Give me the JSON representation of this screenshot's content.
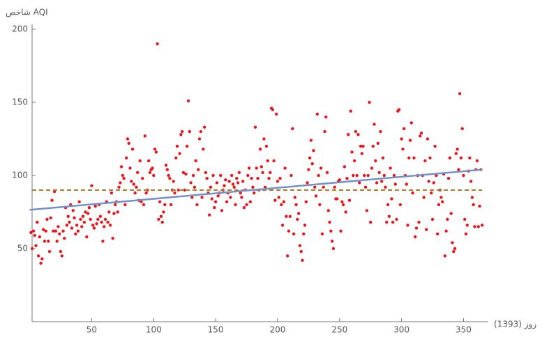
{
  "chart_data": {
    "type": "scatter",
    "y_label": "شاخص AQI",
    "x_label": "روز (1393)",
    "xlim": [
      0,
      370
    ],
    "ylim": [
      0,
      200
    ],
    "xticks": [
      50,
      100,
      150,
      200,
      250,
      300,
      350
    ],
    "yticks": [
      50,
      100,
      150,
      200
    ],
    "point_color": "#e8161b",
    "x": [
      1,
      2,
      3,
      4,
      5,
      6,
      7,
      8,
      9,
      10,
      11,
      12,
      13,
      14,
      15,
      16,
      17,
      18,
      19,
      20,
      21,
      22,
      23,
      24,
      25,
      26,
      27,
      28,
      29,
      30,
      31,
      32,
      33,
      34,
      35,
      36,
      37,
      38,
      39,
      40,
      41,
      42,
      43,
      44,
      45,
      46,
      47,
      48,
      49,
      50,
      51,
      52,
      53,
      54,
      55,
      56,
      57,
      58,
      59,
      60,
      61,
      62,
      63,
      64,
      65,
      66,
      67,
      68,
      69,
      70,
      71,
      72,
      73,
      74,
      75,
      76,
      77,
      78,
      79,
      80,
      81,
      82,
      83,
      84,
      85,
      86,
      87,
      88,
      89,
      90,
      91,
      92,
      93,
      94,
      95,
      96,
      97,
      98,
      99,
      100,
      101,
      102,
      103,
      104,
      105,
      106,
      107,
      108,
      109,
      110,
      111,
      112,
      113,
      114,
      115,
      116,
      117,
      118,
      119,
      120,
      121,
      122,
      123,
      124,
      125,
      126,
      127,
      128,
      129,
      130,
      131,
      132,
      133,
      134,
      135,
      136,
      137,
      138,
      139,
      140,
      141,
      142,
      143,
      144,
      145,
      146,
      147,
      148,
      149,
      150,
      151,
      152,
      153,
      154,
      155,
      156,
      157,
      158,
      159,
      160,
      161,
      162,
      163,
      164,
      165,
      166,
      167,
      168,
      169,
      170,
      171,
      172,
      173,
      174,
      175,
      176,
      177,
      178,
      179,
      180,
      181,
      182,
      183,
      184,
      185,
      186,
      187,
      188,
      189,
      190,
      191,
      192,
      193,
      194,
      195,
      196,
      197,
      198,
      199,
      200,
      201,
      202,
      203,
      204,
      205,
      206,
      207,
      208,
      209,
      210,
      211,
      212,
      213,
      214,
      215,
      216,
      217,
      218,
      219,
      220,
      221,
      222,
      223,
      224,
      225,
      226,
      227,
      228,
      229,
      230,
      231,
      232,
      233,
      234,
      235,
      236,
      237,
      238,
      239,
      240,
      241,
      242,
      243,
      244,
      245,
      246,
      247,
      248,
      249,
      250,
      251,
      252,
      253,
      254,
      255,
      256,
      257,
      258,
      259,
      260,
      261,
      262,
      263,
      264,
      265,
      266,
      267,
      268,
      269,
      270,
      271,
      272,
      273,
      274,
      275,
      276,
      277,
      278,
      279,
      280,
      281,
      282,
      283,
      284,
      285,
      286,
      287,
      288,
      289,
      290,
      291,
      292,
      293,
      294,
      295,
      296,
      297,
      298,
      299,
      300,
      301,
      302,
      303,
      304,
      305,
      306,
      307,
      308,
      309,
      310,
      311,
      312,
      313,
      314,
      315,
      316,
      317,
      318,
      319,
      320,
      321,
      322,
      323,
      324,
      325,
      326,
      327,
      328,
      329,
      330,
      331,
      332,
      333,
      334,
      335,
      336,
      337,
      338,
      339,
      340,
      341,
      342,
      343,
      344,
      345,
      346,
      347,
      348,
      349,
      350,
      351,
      352,
      353,
      354,
      355,
      356,
      357,
      358,
      359,
      360,
      361,
      362,
      363,
      364,
      365
    ],
    "values": [
      61,
      50,
      62,
      59,
      52,
      68,
      45,
      58,
      40,
      43,
      63,
      55,
      62,
      70,
      55,
      48,
      71,
      83,
      62,
      89,
      62,
      55,
      65,
      60,
      48,
      45,
      62,
      57,
      78,
      66,
      72,
      68,
      80,
      64,
      76,
      71,
      60,
      66,
      62,
      82,
      70,
      65,
      72,
      68,
      75,
      58,
      74,
      78,
      70,
      93,
      66,
      64,
      79,
      67,
      70,
      80,
      72,
      68,
      55,
      65,
      70,
      82,
      68,
      75,
      66,
      88,
      57,
      74,
      80,
      82,
      75,
      92,
      95,
      106,
      100,
      98,
      80,
      112,
      125,
      122,
      105,
      96,
      118,
      94,
      88,
      92,
      102,
      83,
      110,
      82,
      98,
      80,
      127,
      88,
      90,
      110,
      102,
      104,
      105,
      100,
      118,
      116,
      190,
      70,
      82,
      72,
      68,
      75,
      80,
      107,
      104,
      100,
      98,
      80,
      90,
      96,
      88,
      112,
      120,
      90,
      115,
      128,
      130,
      102,
      90,
      101,
      120,
      151,
      130,
      95,
      85,
      100,
      92,
      110,
      80,
      104,
      125,
      130,
      85,
      118,
      133,
      102,
      98,
      88,
      73,
      92,
      84,
      100,
      78,
      82,
      95,
      86,
      88,
      100,
      76,
      90,
      93,
      97,
      82,
      88,
      96,
      85,
      100,
      94,
      92,
      80,
      98,
      95,
      102,
      88,
      85,
      96,
      78,
      90,
      80,
      100,
      105,
      82,
      98,
      92,
      88,
      133,
      105,
      98,
      90,
      118,
      106,
      102,
      125,
      92,
      120,
      110,
      98,
      102,
      146,
      145,
      110,
      83,
      142,
      96,
      85,
      98,
      80,
      66,
      82,
      105,
      72,
      45,
      62,
      72,
      100,
      132,
      60,
      85,
      80,
      70,
      74,
      52,
      48,
      42,
      60,
      66,
      82,
      95,
      104,
      112,
      124,
      108,
      117,
      92,
      86,
      142,
      100,
      80,
      105,
      60,
      92,
      130,
      140,
      102,
      76,
      68,
      62,
      55,
      50,
      92,
      84,
      84,
      96,
      97,
      62,
      82,
      80,
      106,
      75,
      98,
      128,
      83,
      144,
      116,
      100,
      110,
      130,
      100,
      128,
      95,
      120,
      115,
      120,
      100,
      92,
      76,
      100,
      150,
      68,
      105,
      120,
      135,
      110,
      95,
      122,
      102,
      130,
      96,
      112,
      100,
      92,
      68,
      80,
      72,
      105,
      84,
      68,
      100,
      94,
      70,
      144,
      145,
      80,
      125,
      118,
      132,
      100,
      94,
      66,
      112,
      124,
      136,
      88,
      112,
      58,
      64,
      100,
      68,
      127,
      129,
      100,
      85,
      110,
      63,
      125,
      96,
      112,
      88,
      70,
      95,
      120,
      100,
      60,
      80,
      90,
      85,
      82,
      101,
      45,
      62,
      70,
      98,
      112,
      74,
      54,
      48,
      50,
      115,
      118,
      104,
      156,
      112,
      132,
      100,
      70,
      60,
      66,
      103,
      112,
      96,
      85,
      80,
      65,
      104,
      110,
      65,
      79,
      104,
      66
    ],
    "trend_line": {
      "x": [
        0,
        365
      ],
      "values": [
        76.5,
        104
      ],
      "color": "#7392c9"
    },
    "reference_line": {
      "value": 90,
      "color": "#b07a2e"
    }
  }
}
